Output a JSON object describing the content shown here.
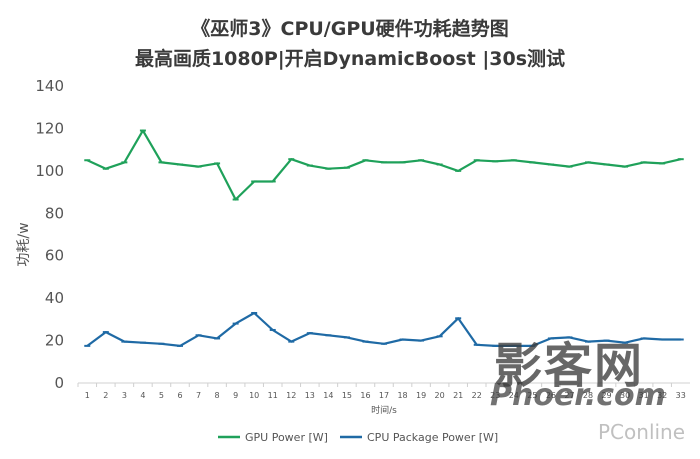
{
  "chart_data": {
    "type": "line",
    "title": "《巫师3》CPU/GPU硬件功耗趋势图",
    "subtitle": "最高画质1080P|开启DynamicBoost |30s测试",
    "xlabel": "时间/s",
    "ylabel": "功耗/w",
    "ylim": [
      0,
      140
    ],
    "yticks": [
      0,
      20,
      40,
      60,
      80,
      100,
      120,
      140
    ],
    "grid": false,
    "legend": "bottom-center",
    "x": [
      1,
      2,
      3,
      4,
      5,
      6,
      7,
      8,
      9,
      10,
      11,
      12,
      13,
      14,
      15,
      16,
      17,
      18,
      19,
      20,
      21,
      22,
      23,
      24,
      25,
      26,
      27,
      28,
      29,
      30,
      31,
      32,
      33
    ],
    "series": [
      {
        "name": "GPU Power [W]",
        "color": "#1fa15a",
        "values": [
          105,
          101,
          104,
          119,
          104,
          103,
          102,
          103.5,
          86.5,
          95,
          95,
          105.5,
          102.5,
          101,
          101.5,
          105,
          104,
          104,
          105,
          103,
          100,
          105,
          104.5,
          105,
          104,
          103,
          102,
          104,
          103,
          102,
          104,
          103.5,
          105.5
        ]
      },
      {
        "name": "CPU Package Power [W]",
        "color": "#1f6aa5",
        "values": [
          17.5,
          24,
          19.5,
          19,
          18.5,
          17.5,
          22.5,
          21,
          28,
          33,
          25,
          19.5,
          23.5,
          22.5,
          21.5,
          19.5,
          18.5,
          20.5,
          20,
          22,
          30.5,
          18,
          17.5,
          17.5,
          17.5,
          21,
          21.5,
          19.5,
          20,
          19,
          21,
          20.5,
          20.5
        ]
      }
    ]
  },
  "watermarks": {
    "cn": "影客网",
    "en": "Phoer.com",
    "pc": "PConline"
  }
}
